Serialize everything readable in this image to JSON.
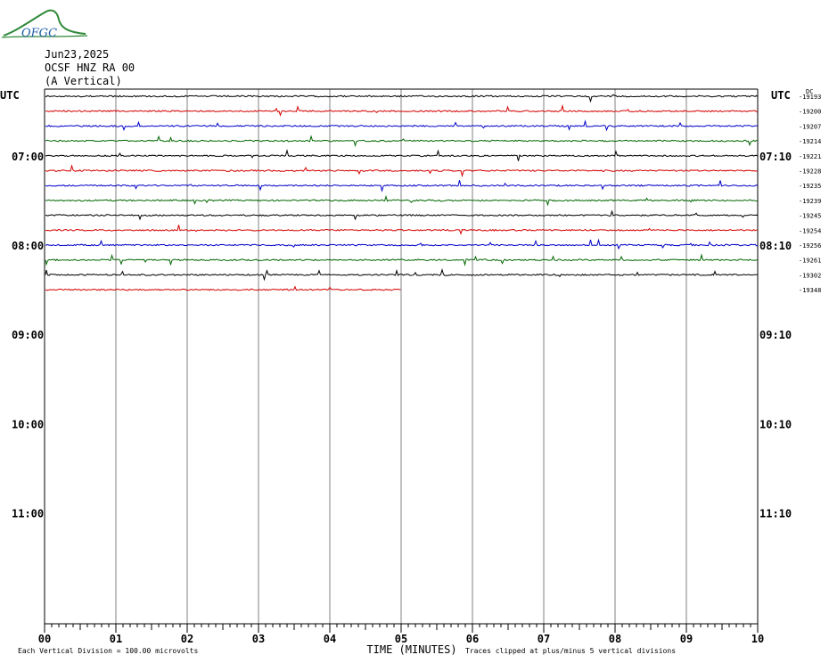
{
  "header": {
    "logo_text": "OFGC",
    "date": "Jun23,2025",
    "station": "OCSF HNZ RA 00",
    "component": "(A Vertical)"
  },
  "axes": {
    "left_unit": "UTC",
    "right_unit": "UTC",
    "left_hour_labels": [
      "07:00",
      "08:00",
      "09:00",
      "10:00",
      "11:00"
    ],
    "right_hour_labels": [
      "07:10",
      "08:10",
      "09:10",
      "10:10",
      "11:10"
    ],
    "x_ticks": [
      "00",
      "01",
      "02",
      "03",
      "04",
      "05",
      "06",
      "07",
      "08",
      "09",
      "10"
    ],
    "x_label": "TIME (MINUTES)",
    "right_top_label": "DC"
  },
  "footer": {
    "scale_note": "Each Vertical Division =  100.00 microvolts",
    "clip_note": "Traces clipped at plus/minus 5 vertical divisions"
  },
  "chart_data": {
    "type": "line",
    "title": "",
    "xlabel": "TIME (MINUTES)",
    "ylabel": "UTC",
    "xlim": [
      0,
      10
    ],
    "grid": true,
    "row_minutes": 10,
    "trace_colors": [
      "#000000",
      "#d40000",
      "#0000c8",
      "#006600"
    ],
    "traces": [
      {
        "start": "06:20",
        "dc": "-19193",
        "end_minute": 10
      },
      {
        "start": "06:30",
        "dc": "-19200",
        "end_minute": 10
      },
      {
        "start": "06:40",
        "dc": "-19207",
        "end_minute": 10
      },
      {
        "start": "06:50",
        "dc": "-19214",
        "end_minute": 10
      },
      {
        "start": "07:00",
        "dc": "-19221",
        "end_minute": 10
      },
      {
        "start": "07:10",
        "dc": "-19228",
        "end_minute": 10
      },
      {
        "start": "07:20",
        "dc": "-19235",
        "end_minute": 10
      },
      {
        "start": "07:30",
        "dc": "-19239",
        "end_minute": 10
      },
      {
        "start": "07:40",
        "dc": "-19245",
        "end_minute": 10
      },
      {
        "start": "07:50",
        "dc": "-19254",
        "end_minute": 10
      },
      {
        "start": "08:00",
        "dc": "-19256",
        "end_minute": 10
      },
      {
        "start": "08:10",
        "dc": "-19261",
        "end_minute": 10
      },
      {
        "start": "08:20",
        "dc": "-19302",
        "end_minute": 10
      },
      {
        "start": "08:30",
        "dc": "-19348",
        "end_minute": 5
      }
    ]
  }
}
